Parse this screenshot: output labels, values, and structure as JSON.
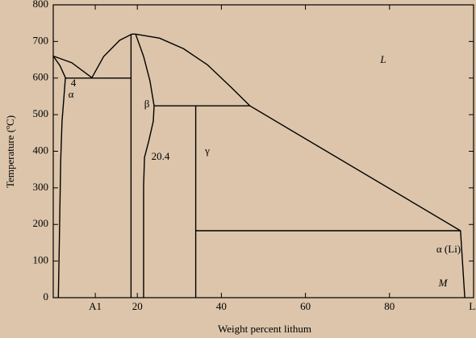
{
  "chart_data": {
    "type": "line",
    "x_label": "Weight percent lithum",
    "y_label": "Temperature (ºC)",
    "xlim": [
      0,
      100
    ],
    "ylim": [
      0,
      800
    ],
    "xticks": [
      {
        "value": 10,
        "label": "A1"
      },
      20,
      40,
      60,
      80,
      {
        "value": 100,
        "label": "Li"
      }
    ],
    "yticks": [
      0,
      100,
      200,
      300,
      400,
      500,
      600,
      700,
      800
    ],
    "background": "#dcc5ab",
    "color": "#000000",
    "series": [
      {
        "x": [
          0,
          4.4,
          9.2
        ],
        "values": [
          660,
          642,
          601
        ]
      },
      {
        "x": [
          0,
          1.6,
          2.9,
          2.1,
          1.77,
          1.58,
          1.39,
          1.2
        ],
        "values": [
          660,
          634,
          601,
          482,
          372,
          240,
          108,
          0
        ]
      },
      {
        "x": [
          2.9,
          18.5
        ],
        "values": [
          600,
          600
        ]
      },
      {
        "x": [
          9.2,
          12,
          15.8,
          18.7,
          19.6
        ],
        "values": [
          601,
          659,
          703,
          720,
          720
        ]
      },
      {
        "x": [
          19.6,
          25.3,
          31,
          36.7,
          42.3,
          46.8,
          96.9,
          97.9
        ],
        "values": [
          720,
          709,
          680,
          636,
          575,
          524,
          183,
          0
        ]
      },
      {
        "x": [
          18.5,
          18.5
        ],
        "values": [
          720,
          0
        ]
      },
      {
        "x": [
          19.6,
          21.5,
          23,
          24,
          23.8,
          22.7,
          21.7,
          21.5,
          21.5
        ],
        "values": [
          720,
          659,
          593,
          524,
          482,
          427,
          383,
          306,
          0
        ]
      },
      {
        "x": [
          24,
          46.8
        ],
        "values": [
          524,
          524
        ]
      },
      {
        "x": [
          33.9,
          33.9
        ],
        "values": [
          524,
          0
        ]
      },
      {
        "x": [
          33.9,
          96.9
        ],
        "values": [
          183,
          183
        ]
      }
    ],
    "annotations": [
      "L",
      "4",
      "α",
      "β",
      "20.4",
      "γ",
      "α (Li)",
      "M"
    ]
  }
}
